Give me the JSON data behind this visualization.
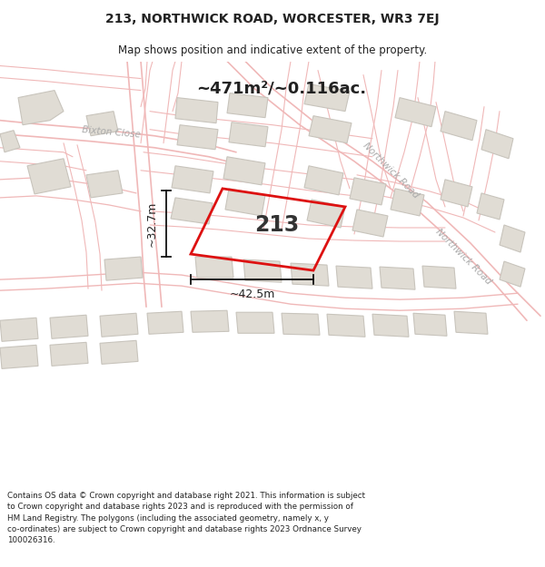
{
  "title_line1": "213, NORTHWICK ROAD, WORCESTER, WR3 7EJ",
  "title_line2": "Map shows position and indicative extent of the property.",
  "area_text": "~471m²/~0.116ac.",
  "property_number": "213",
  "dim_width": "~42.5m",
  "dim_height": "~32.7m",
  "footer_text": "Contains OS data © Crown copyright and database right 2021. This information is subject\nto Crown copyright and database rights 2023 and is reproduced with the permission of\nHM Land Registry. The polygons (including the associated geometry, namely x, y\nco-ordinates) are subject to Crown copyright and database rights 2023 Ordnance Survey\n100026316.",
  "map_bg": "#ffffff",
  "road_color": "#f0b8b8",
  "road_lw": 1.2,
  "highlight_color": "#dd1111",
  "building_fill": "#e0dcd4",
  "building_stroke": "#c8c4bc",
  "text_dark": "#222222",
  "road_label_color": "#aaaaaa",
  "dim_line_color": "#111111"
}
